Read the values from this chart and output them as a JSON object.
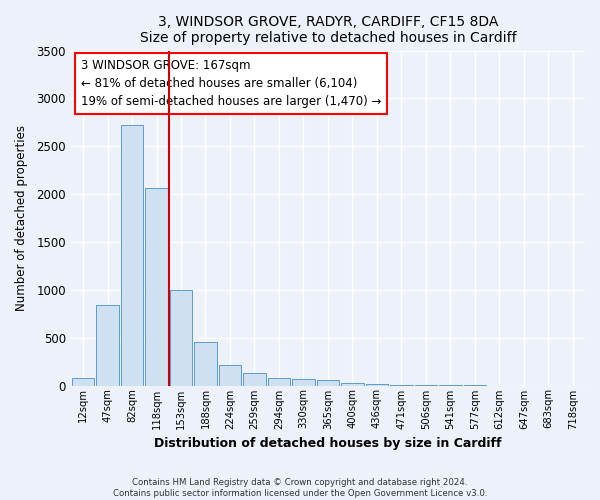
{
  "title": "3, WINDSOR GROVE, RADYR, CARDIFF, CF15 8DA",
  "subtitle": "Size of property relative to detached houses in Cardiff",
  "xlabel": "Distribution of detached houses by size in Cardiff",
  "ylabel": "Number of detached properties",
  "bar_labels": [
    "12sqm",
    "47sqm",
    "82sqm",
    "118sqm",
    "153sqm",
    "188sqm",
    "224sqm",
    "259sqm",
    "294sqm",
    "330sqm",
    "365sqm",
    "400sqm",
    "436sqm",
    "471sqm",
    "506sqm",
    "541sqm",
    "577sqm",
    "612sqm",
    "647sqm",
    "683sqm",
    "718sqm"
  ],
  "bar_values": [
    75,
    840,
    2720,
    2060,
    1000,
    450,
    210,
    135,
    80,
    70,
    55,
    30,
    15,
    8,
    4,
    2,
    1,
    0,
    0,
    0,
    0
  ],
  "bar_color": "#cfe0f0",
  "bar_edge_color": "#5b9bd5",
  "vline_pos": 3.5,
  "vline_color": "#cc0000",
  "property_label": "3 WINDSOR GROVE: 167sqm",
  "annotation_line1": "← 81% of detached houses are smaller (6,104)",
  "annotation_line2": "19% of semi-detached houses are larger (1,470) →",
  "ylim": [
    0,
    3500
  ],
  "yticks": [
    0,
    500,
    1000,
    1500,
    2000,
    2500,
    3000,
    3500
  ],
  "footer1": "Contains HM Land Registry data © Crown copyright and database right 2024.",
  "footer2": "Contains public sector information licensed under the Open Government Licence v3.0.",
  "bg_color": "#edf2fa",
  "plot_bg": "#edf2fa"
}
